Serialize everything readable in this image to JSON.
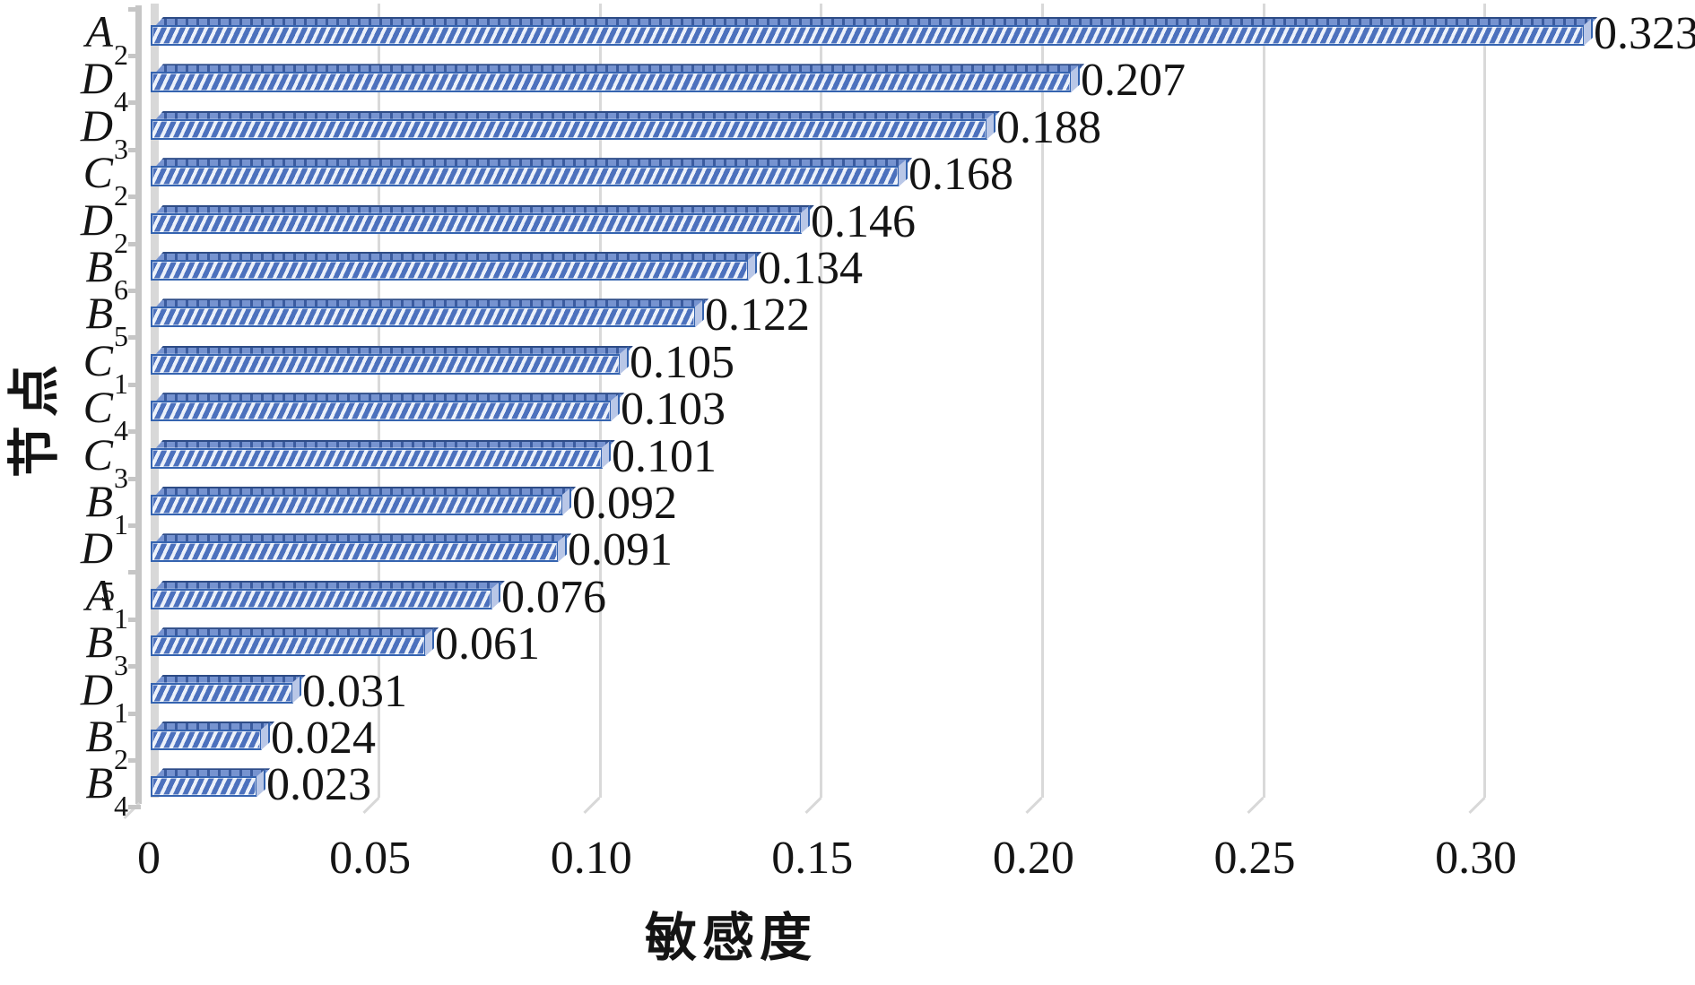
{
  "chart_data": {
    "type": "bar",
    "orientation": "horizontal",
    "style": "excel-3d-hatched-bars",
    "title": "",
    "xlabel": "敏感度",
    "ylabel": "节点",
    "xlim": [
      0,
      0.335
    ],
    "grid": "vertical",
    "legend": "none",
    "x_ticks": [
      {
        "label": "0",
        "value": 0
      },
      {
        "label": "0.05",
        "value": 0.05
      },
      {
        "label": "0.10",
        "value": 0.1
      },
      {
        "label": "0.15",
        "value": 0.15
      },
      {
        "label": "0.20",
        "value": 0.2
      },
      {
        "label": "0.25",
        "value": 0.25
      },
      {
        "label": "0.30",
        "value": 0.3
      }
    ],
    "bars": [
      {
        "category_base": "A",
        "category_sub": "2",
        "value": 0.323,
        "label": "0.323"
      },
      {
        "category_base": "D",
        "category_sub": "4",
        "value": 0.207,
        "label": "0.207"
      },
      {
        "category_base": "D",
        "category_sub": "3",
        "value": 0.188,
        "label": "0.188"
      },
      {
        "category_base": "C",
        "category_sub": "2",
        "value": 0.168,
        "label": "0.168"
      },
      {
        "category_base": "D",
        "category_sub": "2",
        "value": 0.146,
        "label": "0.146"
      },
      {
        "category_base": "B",
        "category_sub": "6",
        "value": 0.134,
        "label": "0.134"
      },
      {
        "category_base": "B",
        "category_sub": "5",
        "value": 0.122,
        "label": "0.122"
      },
      {
        "category_base": "C",
        "category_sub": "1",
        "value": 0.105,
        "label": "0.105"
      },
      {
        "category_base": "C",
        "category_sub": "4",
        "value": 0.103,
        "label": "0.103"
      },
      {
        "category_base": "C",
        "category_sub": "3",
        "value": 0.101,
        "label": "0.101"
      },
      {
        "category_base": "B",
        "category_sub": "1",
        "value": 0.092,
        "label": "0.092"
      },
      {
        "category_base": "D",
        "category_sub": "5",
        "value": 0.091,
        "label": "0.091",
        "sub_low": true
      },
      {
        "category_base": "A",
        "category_sub": "1",
        "value": 0.076,
        "label": "0.076"
      },
      {
        "category_base": "B",
        "category_sub": "3",
        "value": 0.061,
        "label": "0.061"
      },
      {
        "category_base": "D",
        "category_sub": "1",
        "value": 0.031,
        "label": "0.031"
      },
      {
        "category_base": "B",
        "category_sub": "2",
        "value": 0.024,
        "label": "0.024"
      },
      {
        "category_base": "B",
        "category_sub": "4",
        "value": 0.023,
        "label": "0.023"
      }
    ]
  },
  "colors": {
    "bar_border": "#3564b0",
    "bar_hatch_blue": "#4c71bd",
    "bar_hatch_light": "#ecf1fa",
    "bar_roof": "#4f75c3",
    "bar_roof_edge": "#2e4c86",
    "bar_end_cap": "#b9c7e7",
    "gridline": "#d9d9d9",
    "axis_line": "#c6c6c6",
    "wall_line": "#d8d8d8",
    "text": "#141414"
  }
}
